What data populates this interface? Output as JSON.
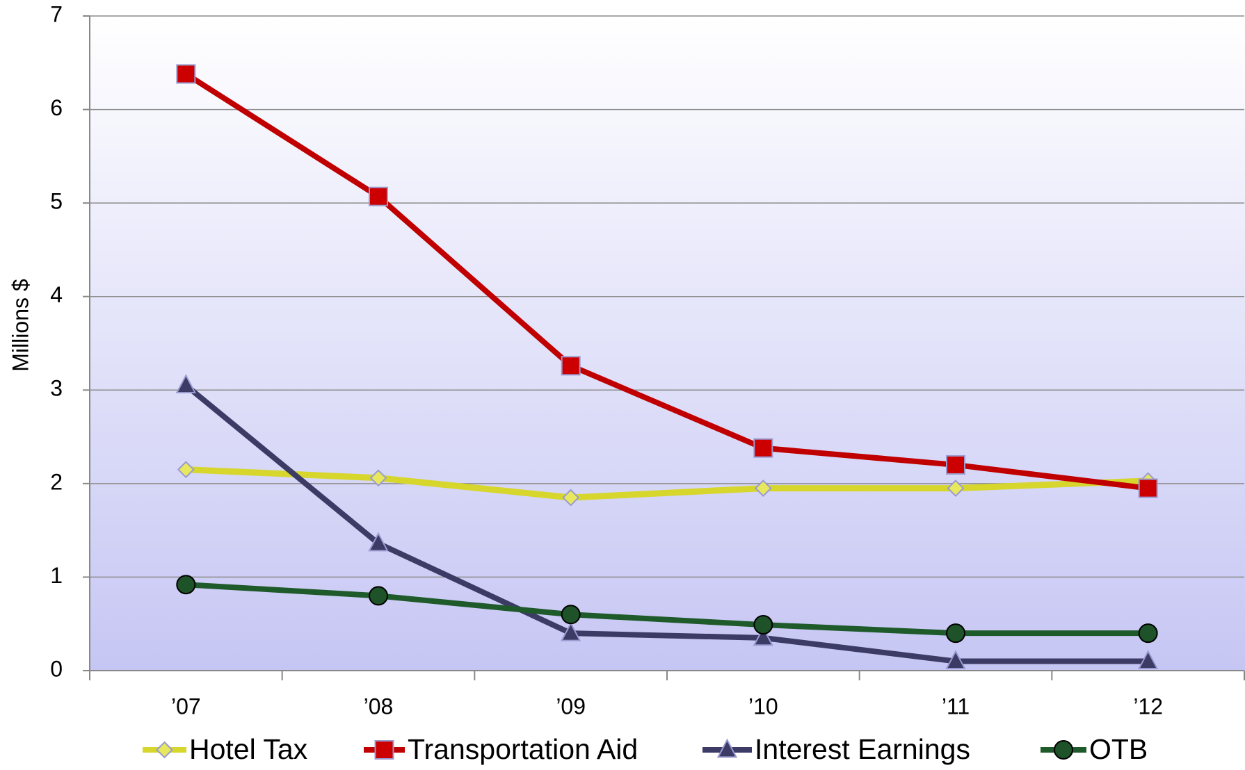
{
  "chart_data": {
    "type": "line",
    "y_label": "Millions $",
    "categories": [
      "’07",
      "’08",
      "’09",
      "’10",
      "’11",
      "’12"
    ],
    "series": [
      {
        "name": "Hotel Tax",
        "color": "#d6d62c",
        "marker_color": "#e8e85e",
        "marker": "diamond",
        "values": [
          2.15,
          2.06,
          1.85,
          1.95,
          1.95,
          2.03
        ]
      },
      {
        "name": "Transportation Aid",
        "color": "#c00000",
        "marker_color": "#cc0000",
        "marker": "square",
        "values": [
          6.38,
          5.07,
          3.26,
          2.38,
          2.2,
          1.95
        ]
      },
      {
        "name": "Interest Earnings",
        "color": "#3b3b66",
        "marker_color": "#3b3b66",
        "marker": "triangle",
        "values": [
          3.05,
          1.36,
          0.4,
          0.35,
          0.1,
          0.1
        ]
      },
      {
        "name": "OTB",
        "color": "#1f5a2a",
        "marker_color": "#1e5228",
        "marker": "circle",
        "values": [
          0.92,
          0.8,
          0.6,
          0.49,
          0.4,
          0.4
        ]
      }
    ],
    "ylim": [
      0,
      7
    ],
    "yticks": [
      0,
      1,
      2,
      3,
      4,
      5,
      6,
      7
    ],
    "grid": true,
    "legend": "bottom"
  }
}
